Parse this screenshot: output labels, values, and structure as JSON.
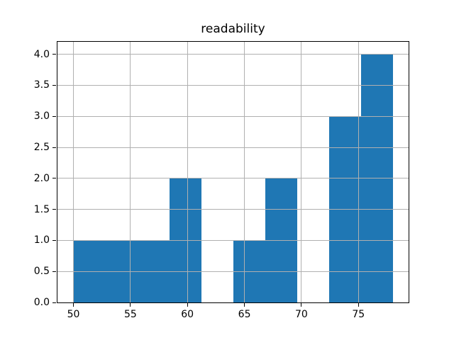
{
  "chart_data": {
    "type": "bar",
    "subtype": "histogram",
    "title": "readability",
    "xlabel": "",
    "ylabel": "",
    "bin_edges": [
      50.0,
      52.8,
      55.6,
      58.4,
      61.2,
      64.0,
      66.8,
      69.6,
      72.4,
      75.2,
      78.0
    ],
    "counts": [
      1,
      1,
      1,
      2,
      0,
      1,
      2,
      0,
      3,
      4
    ],
    "xlim": [
      48.6,
      79.4
    ],
    "ylim": [
      0.0,
      4.2
    ],
    "xtick_values": [
      50,
      55,
      60,
      65,
      70,
      75
    ],
    "xtick_labels": [
      "50",
      "55",
      "60",
      "65",
      "70",
      "75"
    ],
    "ytick_values": [
      0.0,
      0.5,
      1.0,
      1.5,
      2.0,
      2.5,
      3.0,
      3.5,
      4.0
    ],
    "ytick_labels": [
      "0.0",
      "0.5",
      "1.0",
      "1.5",
      "2.0",
      "2.5",
      "3.0",
      "3.5",
      "4.0"
    ],
    "grid": true,
    "grid_position": "above-bars",
    "legend": null,
    "colors": {
      "bar": "#1f77b4",
      "grid": "#b0b0b0",
      "spine": "#000000",
      "text": "#000000",
      "background": "#ffffff"
    }
  }
}
